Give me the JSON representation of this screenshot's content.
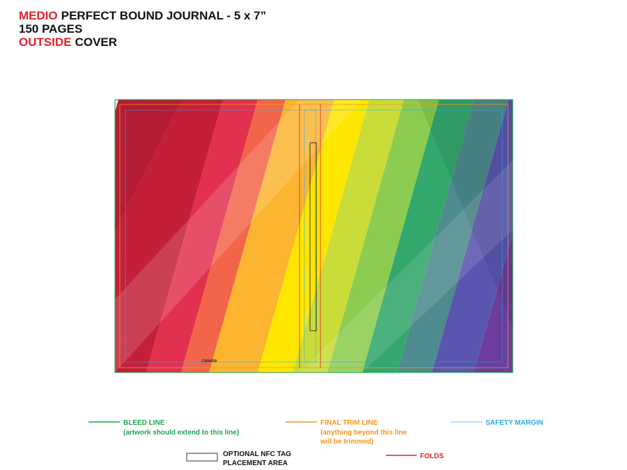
{
  "header": {
    "title_lines": [
      {
        "highlight": "MEDIO",
        "text": "PERFECT BOUND JOURNAL - 5 x 7”"
      },
      {
        "text": "150 PAGES"
      },
      {
        "highlight": "OUTSIDE",
        "text": "COVER"
      }
    ]
  },
  "cover": {
    "imprint": "CANADA"
  },
  "legend": {
    "bleed": {
      "label": "BLEED LINE",
      "note": "(artwork should extend to this line)"
    },
    "trim": {
      "label": "FINAL TRIM LINE",
      "note_lines": [
        "(anything beyond this line",
        "will be trimmed)"
      ]
    },
    "safety": {
      "label": "SAFETY MARGIN"
    },
    "nfc": {
      "label_lines": [
        "OPTIONAL NFC TAG",
        "PLACEMENT AREA"
      ]
    },
    "folds": {
      "label": "FOLDS"
    }
  }
}
